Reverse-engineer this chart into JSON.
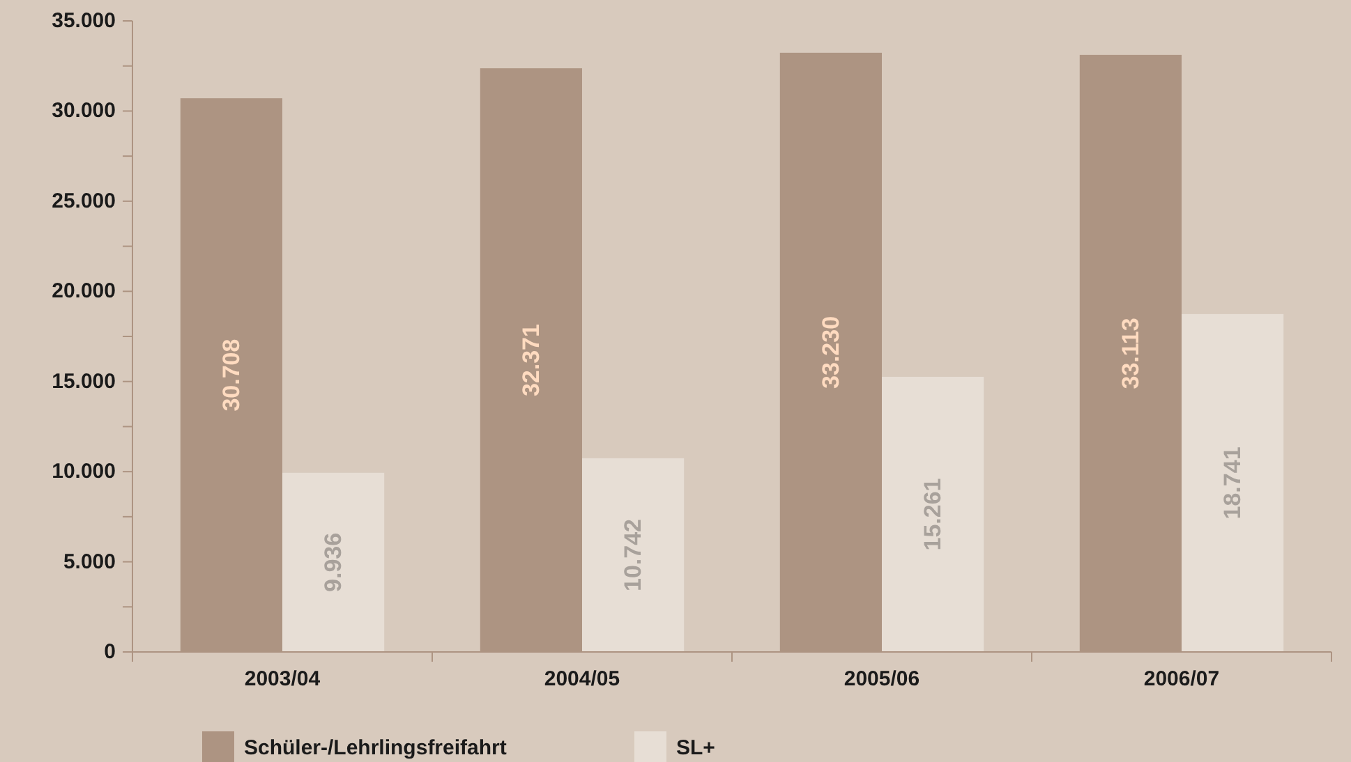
{
  "chart_data": {
    "type": "bar",
    "categories": [
      "2003/04",
      "2004/05",
      "2005/06",
      "2006/07"
    ],
    "series": [
      {
        "name": "Schüler-/Lehrlingsfreifahrt",
        "color": "#ad9482",
        "values": [
          30708,
          32371,
          33230,
          33113
        ],
        "value_labels": [
          "30.708",
          "32.371",
          "33.230",
          "33.113"
        ]
      },
      {
        "name": "SL+",
        "color": "#e7ded5",
        "values": [
          9936,
          10742,
          15261,
          18741
        ],
        "value_labels": [
          "9.936",
          "10.742",
          "15.261",
          "18.741"
        ]
      }
    ],
    "ylim": [
      0,
      35000
    ],
    "yticks": [
      {
        "value": 0,
        "label": "0"
      },
      {
        "value": 2500,
        "label": null
      },
      {
        "value": 5000,
        "label": "5.000"
      },
      {
        "value": 7500,
        "label": null
      },
      {
        "value": 10000,
        "label": "10.000"
      },
      {
        "value": 12500,
        "label": null
      },
      {
        "value": 15000,
        "label": "15.000"
      },
      {
        "value": 17500,
        "label": null
      },
      {
        "value": 20000,
        "label": "20.000"
      },
      {
        "value": 22500,
        "label": null
      },
      {
        "value": 25000,
        "label": "25.000"
      },
      {
        "value": 27500,
        "label": null
      },
      {
        "value": 30000,
        "label": "30.000"
      },
      {
        "value": 32500,
        "label": null
      },
      {
        "value": 35000,
        "label": "35.000"
      }
    ],
    "grid": false,
    "legend": "bottom left"
  }
}
